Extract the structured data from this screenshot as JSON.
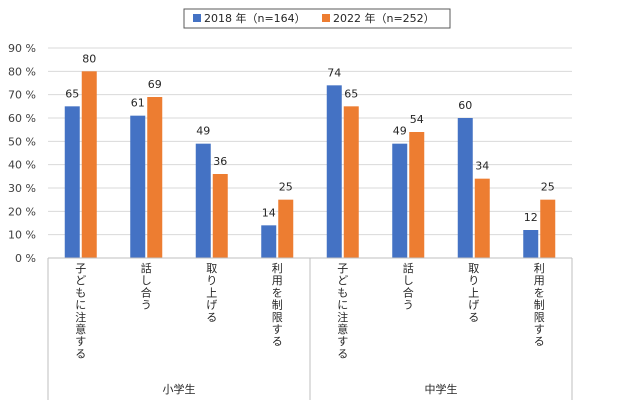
{
  "chart_data": {
    "type": "bar",
    "y_unit": "%",
    "ylim": [
      0,
      90
    ],
    "yticks": [
      0,
      10,
      20,
      30,
      40,
      50,
      60,
      70,
      80,
      90
    ],
    "ytick_labels": [
      "0 %",
      "10 %",
      "20 %",
      "30 %",
      "40 %",
      "50 %",
      "60 %",
      "70 %",
      "80 %",
      "90 %"
    ],
    "grid": true,
    "legend_position": "top",
    "groups": [
      {
        "label": "小学生",
        "categories": [
          "子どもに注意する",
          "話し合う",
          "取り上げる",
          "利用を制限する"
        ]
      },
      {
        "label": "中学生",
        "categories": [
          "子どもに注意する",
          "話し合う",
          "取り上げる",
          "利用を制限する"
        ]
      }
    ],
    "series": [
      {
        "name": "2018 年（n=164）",
        "color": "#4472C4",
        "values": [
          65,
          61,
          49,
          14,
          74,
          49,
          60,
          12
        ]
      },
      {
        "name": "2022 年（n=252）",
        "color": "#ED7D31",
        "values": [
          80,
          69,
          36,
          25,
          65,
          54,
          34,
          25
        ]
      }
    ]
  }
}
